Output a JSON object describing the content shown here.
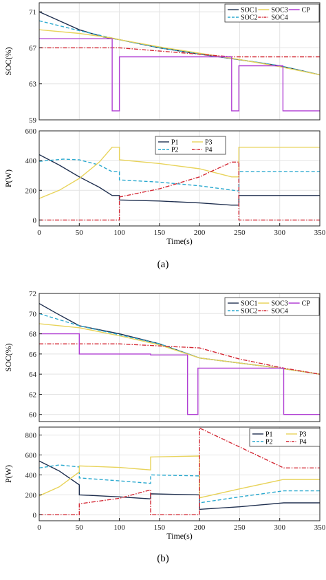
{
  "figure": {
    "caption_a": "(a)",
    "caption_b": "(b)"
  },
  "colors": {
    "SOC1": "#1f2f4f",
    "SOC2": "#2aa9cf",
    "SOC3": "#e8d35a",
    "SOC4": "#d42a36",
    "CP": "#b03fd3",
    "P1": "#1f2f4f",
    "P2": "#2aa9cf",
    "P3": "#e8d35a",
    "P4": "#d42a36"
  },
  "chart_data": [
    {
      "id": "a-soc",
      "type": "line",
      "ylabel": "SOC(%)",
      "xlabel": "",
      "xlim": [
        0,
        350
      ],
      "ylim": [
        59,
        72
      ],
      "yticks": [
        59,
        63,
        67,
        71
      ],
      "xticks": [],
      "grid": true,
      "legend": "top-right",
      "series": [
        {
          "name": "SOC1",
          "dash": "solid",
          "points": [
            [
              0,
              71
            ],
            [
              20,
              70.2
            ],
            [
              50,
              69
            ],
            [
              80,
              68.2
            ],
            [
              100,
              67.9
            ],
            [
              150,
              67.0
            ],
            [
              200,
              66.3
            ],
            [
              240,
              65.8
            ],
            [
              300,
              65.0
            ],
            [
              350,
              64.0
            ]
          ]
        },
        {
          "name": "SOC2",
          "dash": "dashed",
          "points": [
            [
              0,
              70
            ],
            [
              50,
              68.9
            ],
            [
              100,
              67.9
            ],
            [
              150,
              67.0
            ],
            [
              200,
              66.3
            ],
            [
              250,
              65.7
            ],
            [
              300,
              65.0
            ],
            [
              350,
              64.0
            ]
          ]
        },
        {
          "name": "SOC3",
          "dash": "solid",
          "points": [
            [
              0,
              69
            ],
            [
              50,
              68.6
            ],
            [
              90,
              68.1
            ],
            [
              100,
              67.9
            ],
            [
              150,
              67.1
            ],
            [
              200,
              66.4
            ],
            [
              250,
              65.7
            ],
            [
              300,
              64.9
            ],
            [
              350,
              64.0
            ]
          ]
        },
        {
          "name": "SOC4",
          "dash": "dashdot",
          "points": [
            [
              0,
              67
            ],
            [
              100,
              67
            ],
            [
              240,
              66
            ],
            [
              350,
              66
            ]
          ]
        },
        {
          "name": "CP",
          "dash": "solid",
          "points": [
            [
              0,
              68
            ],
            [
              91,
              68
            ],
            [
              91,
              60
            ],
            [
              100,
              60
            ],
            [
              100,
              66
            ],
            [
              240,
              66
            ],
            [
              240,
              60
            ],
            [
              249,
              60
            ],
            [
              249,
              65
            ],
            [
              304,
              65
            ],
            [
              304,
              60
            ],
            [
              350,
              60
            ]
          ]
        }
      ],
      "legend_entries": [
        "SOC1",
        "SOC3",
        "CP",
        "SOC2",
        "SOC4"
      ]
    },
    {
      "id": "a-p",
      "type": "line",
      "ylabel": "P(W)",
      "xlabel": "Time(s)",
      "xlim": [
        0,
        350
      ],
      "ylim": [
        -40,
        600
      ],
      "yticks": [
        0,
        200,
        400,
        600
      ],
      "xticks": [
        0,
        50,
        100,
        150,
        200,
        250,
        300,
        350
      ],
      "grid": true,
      "legend": "top-center",
      "series": [
        {
          "name": "P1",
          "dash": "solid",
          "points": [
            [
              0,
              440
            ],
            [
              25,
              370
            ],
            [
              50,
              290
            ],
            [
              75,
              220
            ],
            [
              91,
              165
            ],
            [
              100,
              165
            ],
            [
              100,
              135
            ],
            [
              150,
              128
            ],
            [
              200,
              115
            ],
            [
              240,
              100
            ],
            [
              249,
              100
            ],
            [
              249,
              165
            ],
            [
              350,
              165
            ]
          ]
        },
        {
          "name": "P2",
          "dash": "dashed",
          "points": [
            [
              0,
              395
            ],
            [
              30,
              410
            ],
            [
              50,
              405
            ],
            [
              75,
              370
            ],
            [
              91,
              325
            ],
            [
              100,
              325
            ],
            [
              100,
              270
            ],
            [
              150,
              255
            ],
            [
              200,
              230
            ],
            [
              249,
              195
            ],
            [
              249,
              325
            ],
            [
              350,
              325
            ]
          ]
        },
        {
          "name": "P3",
          "dash": "solid",
          "points": [
            [
              0,
              145
            ],
            [
              25,
              200
            ],
            [
              50,
              280
            ],
            [
              75,
              390
            ],
            [
              91,
              490
            ],
            [
              100,
              490
            ],
            [
              100,
              405
            ],
            [
              150,
              380
            ],
            [
              200,
              345
            ],
            [
              240,
              290
            ],
            [
              249,
              290
            ],
            [
              249,
              490
            ],
            [
              350,
              490
            ]
          ]
        },
        {
          "name": "P4",
          "dash": "dashdot",
          "points": [
            [
              0,
              0
            ],
            [
              100,
              0
            ],
            [
              100,
              155
            ],
            [
              150,
              210
            ],
            [
              200,
              290
            ],
            [
              240,
              390
            ],
            [
              249,
              390
            ],
            [
              249,
              0
            ],
            [
              350,
              0
            ]
          ]
        }
      ],
      "legend_entries": [
        "P1",
        "P3",
        "P2",
        "P4"
      ]
    },
    {
      "id": "b-soc",
      "type": "line",
      "ylabel": "SOC(%)",
      "xlabel": "",
      "xlim": [
        0,
        350
      ],
      "ylim": [
        59.3,
        72
      ],
      "yticks": [
        60,
        62,
        64,
        66,
        68,
        70,
        72
      ],
      "xticks": [],
      "grid": true,
      "legend": "top-right",
      "series": [
        {
          "name": "SOC1",
          "dash": "solid",
          "points": [
            [
              0,
              71
            ],
            [
              20,
              70.1
            ],
            [
              50,
              68.8
            ],
            [
              100,
              68
            ],
            [
              150,
              67
            ],
            [
              200,
              65.6
            ],
            [
              250,
              65.1
            ],
            [
              300,
              64.6
            ],
            [
              350,
              64
            ]
          ]
        },
        {
          "name": "SOC2",
          "dash": "dashed",
          "points": [
            [
              0,
              70
            ],
            [
              50,
              68.8
            ],
            [
              100,
              67.9
            ],
            [
              150,
              67
            ],
            [
              200,
              65.6
            ],
            [
              250,
              65.1
            ],
            [
              300,
              64.6
            ],
            [
              350,
              64
            ]
          ]
        },
        {
          "name": "SOC3",
          "dash": "solid",
          "points": [
            [
              0,
              69
            ],
            [
              50,
              68.6
            ],
            [
              100,
              67.8
            ],
            [
              150,
              66.9
            ],
            [
              200,
              65.6
            ],
            [
              250,
              65.1
            ],
            [
              300,
              64.6
            ],
            [
              350,
              64
            ]
          ]
        },
        {
          "name": "SOC4",
          "dash": "dashdot",
          "points": [
            [
              0,
              67
            ],
            [
              100,
              67
            ],
            [
              150,
              66.8
            ],
            [
              200,
              66.6
            ],
            [
              250,
              65.5
            ],
            [
              305,
              64.6
            ],
            [
              350,
              64
            ]
          ]
        },
        {
          "name": "CP",
          "dash": "solid",
          "points": [
            [
              0,
              68
            ],
            [
              50,
              68
            ],
            [
              50,
              66
            ],
            [
              139,
              66
            ],
            [
              139,
              65.9
            ],
            [
              185,
              65.9
            ],
            [
              185,
              60
            ],
            [
              198,
              60
            ],
            [
              198,
              64.6
            ],
            [
              305,
              64.6
            ],
            [
              305,
              60
            ],
            [
              350,
              60
            ]
          ]
        }
      ],
      "legend_entries": [
        "SOC1",
        "SOC3",
        "CP",
        "SOC2",
        "SOC4"
      ]
    },
    {
      "id": "b-p",
      "type": "line",
      "ylabel": "P(W)",
      "xlabel": "Time(s)",
      "xlim": [
        0,
        350
      ],
      "ylim": [
        -60,
        880
      ],
      "yticks": [
        0,
        200,
        400,
        600,
        800
      ],
      "xticks": [
        0,
        50,
        100,
        150,
        200,
        250,
        300,
        350
      ],
      "grid": true,
      "legend": "top-right",
      "series": [
        {
          "name": "P1",
          "dash": "solid",
          "points": [
            [
              0,
              540
            ],
            [
              25,
              440
            ],
            [
              50,
              300
            ],
            [
              50,
              200
            ],
            [
              100,
              180
            ],
            [
              139,
              160
            ],
            [
              139,
              210
            ],
            [
              200,
              200
            ],
            [
              200,
              55
            ],
            [
              250,
              80
            ],
            [
              305,
              120
            ],
            [
              350,
              120
            ]
          ]
        },
        {
          "name": "P2",
          "dash": "dashed",
          "points": [
            [
              0,
              470
            ],
            [
              25,
              500
            ],
            [
              50,
              480
            ],
            [
              50,
              370
            ],
            [
              100,
              340
            ],
            [
              139,
              315
            ],
            [
              139,
              400
            ],
            [
              200,
              390
            ],
            [
              200,
              120
            ],
            [
              250,
              180
            ],
            [
              305,
              240
            ],
            [
              350,
              240
            ]
          ]
        },
        {
          "name": "P3",
          "dash": "solid",
          "points": [
            [
              0,
              190
            ],
            [
              25,
              280
            ],
            [
              50,
              430
            ],
            [
              50,
              490
            ],
            [
              100,
              475
            ],
            [
              139,
              450
            ],
            [
              139,
              580
            ],
            [
              200,
              590
            ],
            [
              200,
              170
            ],
            [
              250,
              260
            ],
            [
              305,
              355
            ],
            [
              350,
              355
            ]
          ]
        },
        {
          "name": "P4",
          "dash": "dashdot",
          "points": [
            [
              0,
              0
            ],
            [
              50,
              0
            ],
            [
              50,
              110
            ],
            [
              100,
              165
            ],
            [
              139,
              250
            ],
            [
              139,
              0
            ],
            [
              200,
              0
            ],
            [
              200,
              870
            ],
            [
              250,
              680
            ],
            [
              305,
              470
            ],
            [
              350,
              470
            ]
          ]
        }
      ],
      "legend_entries": [
        "P1",
        "P3",
        "P2",
        "P4"
      ]
    }
  ]
}
